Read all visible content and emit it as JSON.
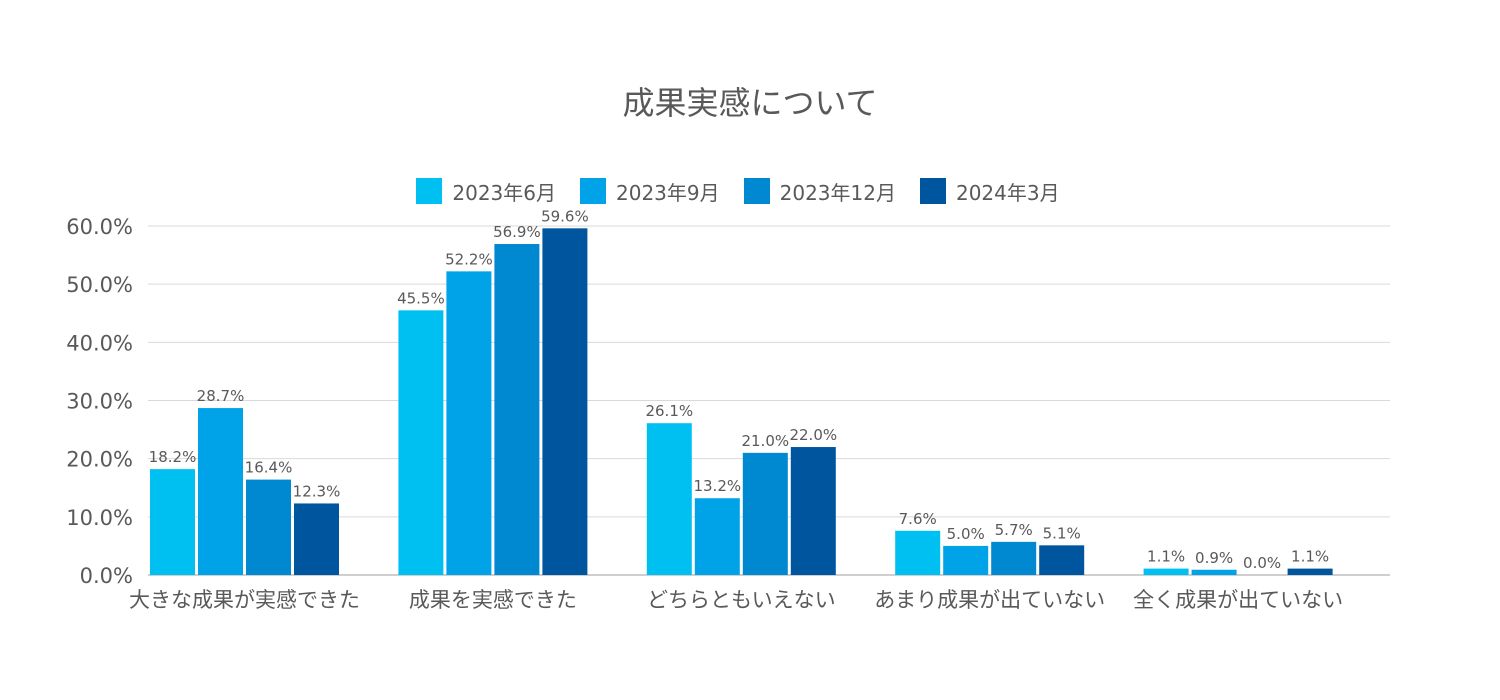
{
  "chart_data": {
    "type": "bar",
    "title": "成果実感について",
    "categories": [
      "大きな成果が実感できた",
      "成果を実感できた",
      "どちらともいえない",
      "あまり成果が出ていない",
      "全く成果が出ていない"
    ],
    "series": [
      {
        "name": "2023年6月",
        "color": "#00C0F2",
        "values": [
          18.2,
          45.5,
          26.1,
          7.6,
          1.1
        ],
        "labels": [
          "18.2%",
          "45.5%",
          "26.1%",
          "7.6%",
          "1.1%"
        ]
      },
      {
        "name": "2023年9月",
        "color": "#00A2E8",
        "values": [
          28.7,
          52.2,
          13.2,
          5.0,
          0.9
        ],
        "labels": [
          "28.7%",
          "52.2%",
          "13.2%",
          "5.0%",
          "0.9%"
        ]
      },
      {
        "name": "2023年12月",
        "color": "#0088D0",
        "values": [
          16.4,
          56.9,
          21.0,
          5.7,
          0.0
        ],
        "labels": [
          "16.4%",
          "56.9%",
          "21.0%",
          "5.7%",
          "0.0%"
        ]
      },
      {
        "name": "2024年3月",
        "color": "#00569E",
        "values": [
          12.3,
          59.6,
          22.0,
          5.1,
          1.1
        ],
        "labels": [
          "12.3%",
          "59.6%",
          "22.0%",
          "5.1%",
          "1.1%"
        ]
      }
    ],
    "yticks": [
      "0.0%",
      "10.0%",
      "20.0%",
      "30.0%",
      "40.0%",
      "50.0%",
      "60.0%"
    ],
    "ylim": [
      0,
      60
    ],
    "grid": true,
    "legend_position": "top"
  }
}
